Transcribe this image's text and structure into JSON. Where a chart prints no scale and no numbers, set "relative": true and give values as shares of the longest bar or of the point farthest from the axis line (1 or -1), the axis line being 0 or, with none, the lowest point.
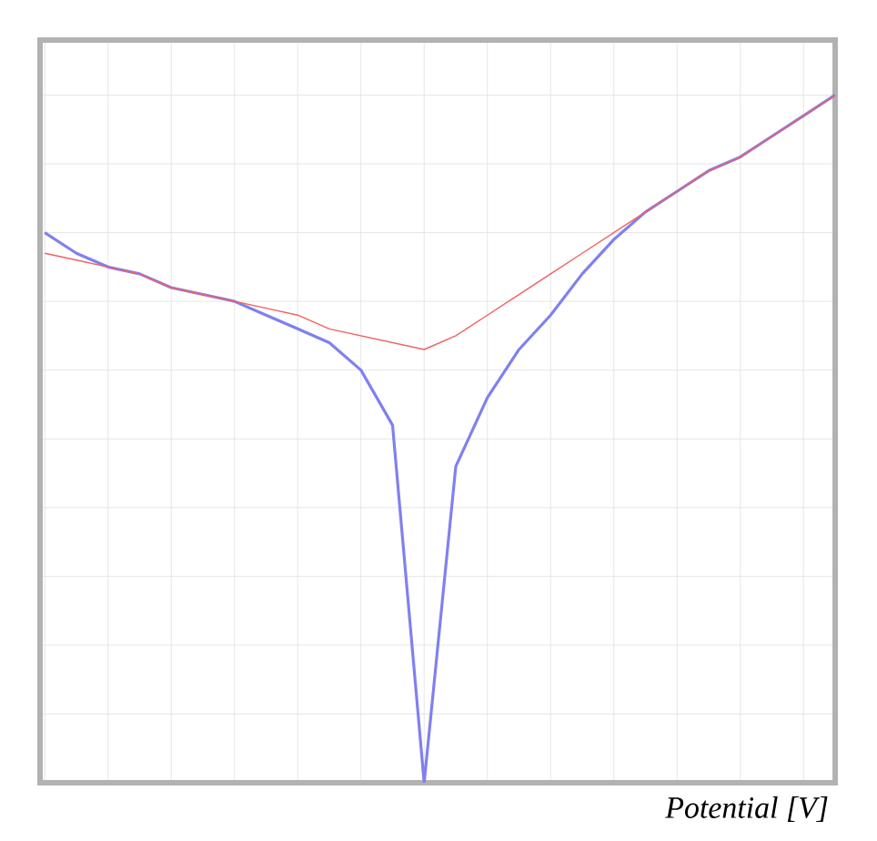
{
  "chart_data": {
    "type": "line",
    "relative": true,
    "xlabel": "Potential [V]",
    "grid": true,
    "marker": "none",
    "line_style": "solid",
    "categories": [
      null,
      null,
      null,
      null,
      null,
      null,
      null,
      null,
      null,
      null,
      null,
      null,
      null,
      null,
      null,
      null,
      null,
      null,
      null,
      null,
      null,
      null,
      null,
      null,
      null,
      null
    ],
    "series": [
      {
        "color": "#f06060",
        "values": [
          0.77,
          0.76,
          0.75,
          0.74,
          0.72,
          0.71,
          0.7,
          0.69,
          0.68,
          0.66,
          0.65,
          0.64,
          0.63,
          0.65,
          0.68,
          0.71,
          0.74,
          0.77,
          0.8,
          0.83,
          0.86,
          0.89,
          0.91,
          0.94,
          0.97,
          1
        ]
      },
      {
        "color": "#8080f0",
        "values": [
          0.8,
          0.77,
          0.75,
          0.74,
          0.72,
          0.71,
          0.7,
          0.68,
          0.66,
          0.64,
          0.6,
          0.52,
          0,
          0.46,
          0.56,
          0.63,
          0.68,
          0.74,
          0.79,
          0.83,
          0.86,
          0.89,
          0.91,
          0.94,
          0.97,
          1
        ]
      }
    ]
  }
}
